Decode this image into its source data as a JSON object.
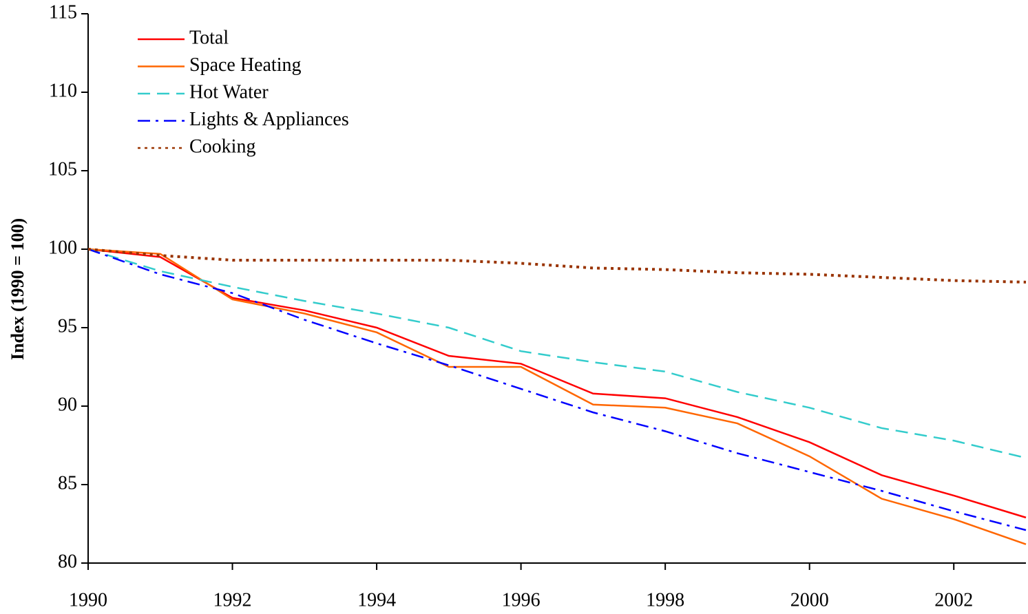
{
  "chart_data": {
    "type": "line",
    "y_label": "Index (1990 = 100)",
    "x": [
      1990,
      1991,
      1992,
      1993,
      1994,
      1995,
      1996,
      1997,
      1998,
      1999,
      2000,
      2001,
      2002,
      2003
    ],
    "series": [
      {
        "name": "Total",
        "color": "#ff0000",
        "style": "solid",
        "values": [
          100,
          99.5,
          96.9,
          96.1,
          95.0,
          93.2,
          92.7,
          90.8,
          90.5,
          89.3,
          87.7,
          85.6,
          84.3,
          82.9
        ]
      },
      {
        "name": "Space Heating",
        "color": "#ff6600",
        "style": "solid",
        "values": [
          100,
          99.7,
          96.8,
          95.9,
          94.7,
          92.5,
          92.5,
          90.1,
          89.9,
          88.9,
          86.8,
          84.1,
          82.8,
          81.2
        ]
      },
      {
        "name": "Hot Water",
        "color": "#33cccc",
        "style": "dashed",
        "values": [
          100,
          98.6,
          97.6,
          96.7,
          95.9,
          95.0,
          93.5,
          92.8,
          92.2,
          90.9,
          89.9,
          88.6,
          87.8,
          86.7
        ]
      },
      {
        "name": "Lights & Appliances",
        "color": "#0000ff",
        "style": "dashdot",
        "values": [
          100,
          98.4,
          97.2,
          95.5,
          94.0,
          92.6,
          91.1,
          89.6,
          88.4,
          87.0,
          85.8,
          84.6,
          83.3,
          82.1
        ]
      },
      {
        "name": "Cooking",
        "color": "#993300",
        "style": "dotted",
        "values": [
          100,
          99.6,
          99.3,
          99.3,
          99.3,
          99.3,
          99.1,
          98.8,
          98.7,
          98.5,
          98.4,
          98.2,
          98.0,
          97.9
        ]
      }
    ],
    "xlim": [
      1990,
      2003
    ],
    "xticks": [
      1990,
      1992,
      1994,
      1996,
      1998,
      2000,
      2002
    ],
    "ylim": [
      80,
      115
    ],
    "yticks": [
      80,
      85,
      90,
      95,
      100,
      105,
      110,
      115
    ],
    "legend": "upper left",
    "grid": false
  }
}
